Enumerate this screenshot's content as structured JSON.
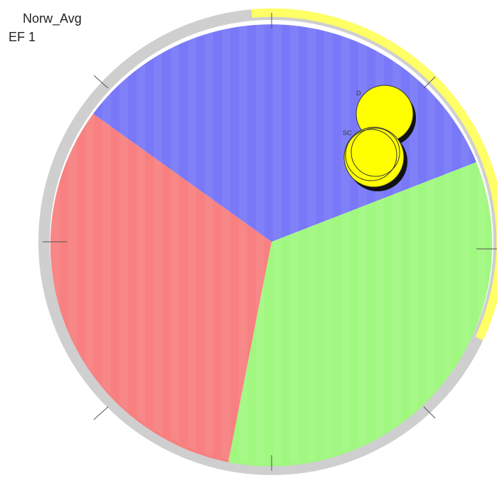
{
  "labels": {
    "title": "Norw_Avg",
    "subtitle": "EF 1"
  },
  "markers": [
    {
      "label": "D"
    },
    {
      "label": "SC"
    }
  ]
}
